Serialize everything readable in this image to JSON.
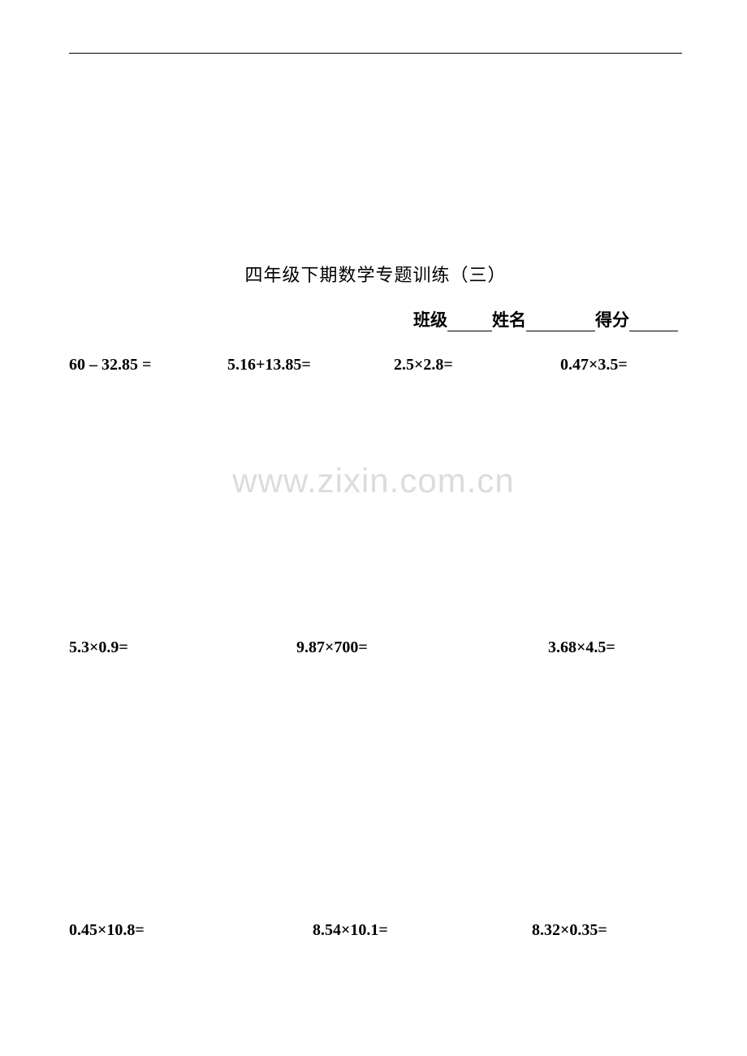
{
  "document": {
    "title": "四年级下期数学专题训练（三）",
    "fields": {
      "class_label": "班级",
      "name_label": "姓名",
      "score_label": "得分"
    },
    "watermark": "www.zixin.com.cn",
    "colors": {
      "text": "#000000",
      "background": "#ffffff",
      "watermark": "#dcdcdc",
      "rule": "#000000"
    },
    "typography": {
      "title_fontsize": 22,
      "body_fontsize": 20,
      "field_fontsize": 21,
      "watermark_fontsize": 42,
      "body_font": "Times New Roman",
      "cjk_font": "SimSun"
    },
    "rows": [
      {
        "problems": [
          "60 – 32.85 =",
          "5.16+13.85=",
          "2.5×2.8=",
          "0.47×3.5="
        ]
      },
      {
        "problems": [
          "5.3×0.9=",
          "9.87×700=",
          "3.68×4.5="
        ]
      },
      {
        "problems": [
          "0.45×10.8=",
          "8.54×10.1=",
          "8.32×0.35="
        ]
      }
    ]
  }
}
